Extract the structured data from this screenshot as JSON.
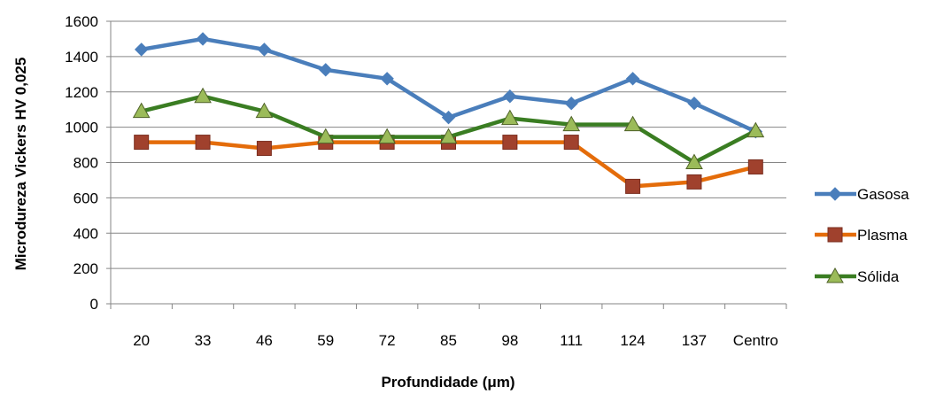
{
  "chart_data": {
    "type": "line",
    "title": "",
    "xlabel": "Profundidade (μm)",
    "ylabel": "Microdureza Vickers HV 0,025",
    "categories": [
      "20",
      "33",
      "46",
      "59",
      "72",
      "85",
      "98",
      "111",
      "124",
      "137",
      "Centro"
    ],
    "ylim": [
      0,
      1600
    ],
    "yticks": [
      0,
      200,
      400,
      600,
      800,
      1000,
      1200,
      1400,
      1600
    ],
    "grid": true,
    "legend_position": "right",
    "series": [
      {
        "name": "Gasosa",
        "color": "#4A7EBB",
        "marker": "diamond",
        "values": [
          1440,
          1500,
          1440,
          1325,
          1275,
          1055,
          1175,
          1135,
          1275,
          1135,
          975
        ]
      },
      {
        "name": "Plasma",
        "color": "#E46C0A",
        "marker": "square",
        "values": [
          915,
          915,
          880,
          915,
          915,
          915,
          915,
          915,
          665,
          690,
          775
        ]
      },
      {
        "name": "Sólida",
        "color": "#3A7D22",
        "marker": "triangle",
        "values": [
          1090,
          1175,
          1090,
          945,
          945,
          945,
          1050,
          1015,
          1015,
          800,
          980
        ]
      }
    ]
  }
}
